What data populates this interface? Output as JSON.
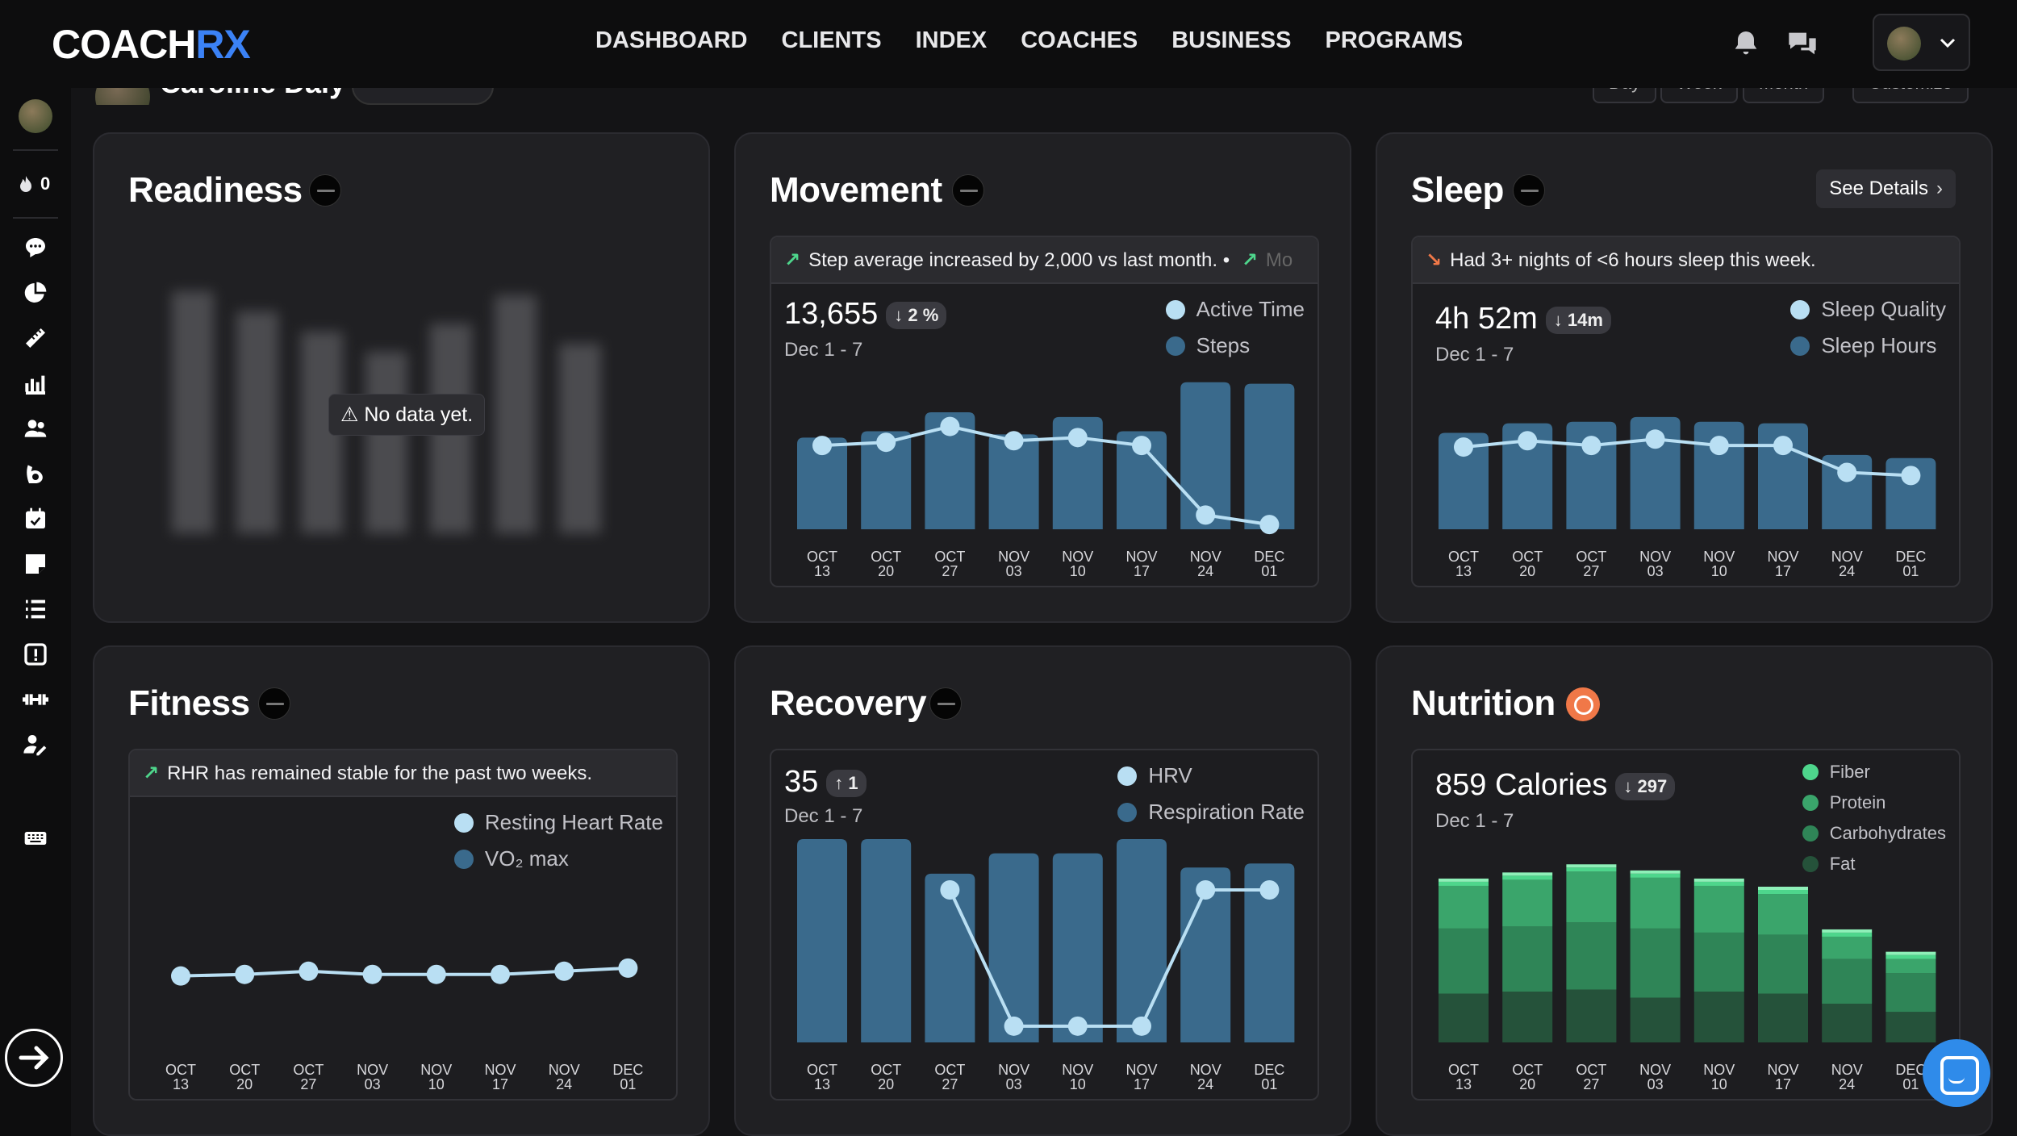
{
  "app": {
    "logo_main": "COACH",
    "logo_accent": "RX"
  },
  "nav": {
    "items": [
      "DASHBOARD",
      "CLIENTS",
      "INDEX",
      "COACHES",
      "BUSINESS",
      "PROGRAMS"
    ]
  },
  "topbar": {
    "icons": [
      "bell-icon",
      "chat-bubbles-icon",
      "chevron-down-icon"
    ]
  },
  "sidebar": {
    "streak_count": "0",
    "icons": [
      "message-icon",
      "pie-chart-icon",
      "ruler-icon",
      "bar-chart-icon",
      "users-icon",
      "biceps-icon",
      "calendar-icon",
      "note-icon",
      "list-icon",
      "alert-icon",
      "dumbbell-icon",
      "user-edit-icon",
      "keyboard-icon",
      "arrow-right-icon"
    ]
  },
  "header": {
    "client_name": "Caroline Daly",
    "range_buttons": [
      "Day",
      "Week",
      "Month"
    ],
    "customize_label": "Customize"
  },
  "colors": {
    "bar_blue": "#3a6a8c",
    "line_blue": "#b9dff3",
    "fiber": "#4ed68c",
    "protein": "#3aa56b",
    "carbs": "#2f8557",
    "fat": "#25523a",
    "accent_blue": "#3b82f6",
    "nutrition_orange": "#f07848"
  },
  "readiness": {
    "title": "Readiness",
    "no_data": "No data yet."
  },
  "movement": {
    "title": "Movement",
    "insight": "Step average increased by 2,000 vs last month. • ",
    "insight_trailing": "Mo",
    "value": "13,655",
    "delta": "2 %",
    "period": "Dec 1 - 7",
    "legend": [
      "Active Time",
      "Steps"
    ]
  },
  "sleep": {
    "title": "Sleep",
    "see_details": "See Details",
    "insight": "Had 3+ nights of <6 hours sleep this week.",
    "value": "4h 52m",
    "delta": "14m",
    "period": "Dec 1 - 7",
    "legend": [
      "Sleep Quality",
      "Sleep Hours"
    ]
  },
  "fitness": {
    "title": "Fitness",
    "insight": "RHR has remained stable for the past two weeks.",
    "legend": [
      "Resting Heart Rate",
      "VO₂ max"
    ]
  },
  "recovery": {
    "title": "Recovery",
    "value": "35",
    "delta": "1",
    "period": "Dec 1 - 7",
    "legend": [
      "HRV",
      "Respiration Rate"
    ]
  },
  "nutrition": {
    "title": "Nutrition",
    "value": "859 Calories",
    "delta": "297",
    "period": "Dec 1 - 7",
    "legend": [
      "Fiber",
      "Protein",
      "Carbohydrates",
      "Fat"
    ]
  },
  "chart_data": [
    {
      "id": "movement",
      "type": "bar",
      "categories": [
        "OCT 13",
        "OCT 20",
        "OCT 27",
        "NOV 03",
        "NOV 10",
        "NOV 17",
        "NOV 24",
        "DEC 01"
      ],
      "series": [
        {
          "name": "Steps",
          "kind": "bar",
          "values": [
            0.58,
            0.62,
            0.74,
            0.6,
            0.71,
            0.62,
            0.93,
            0.92
          ]
        },
        {
          "name": "Active Time",
          "kind": "line",
          "values": [
            0.53,
            0.55,
            0.65,
            0.56,
            0.58,
            0.53,
            0.09,
            0.03
          ]
        }
      ]
    },
    {
      "id": "sleep",
      "type": "bar",
      "categories": [
        "OCT 13",
        "OCT 20",
        "OCT 27",
        "NOV 03",
        "NOV 10",
        "NOV 17",
        "NOV 24",
        "DEC 01"
      ],
      "series": [
        {
          "name": "Sleep Hours",
          "kind": "bar",
          "values": [
            0.61,
            0.67,
            0.68,
            0.71,
            0.68,
            0.67,
            0.47,
            0.45
          ]
        },
        {
          "name": "Sleep Quality",
          "kind": "line",
          "values": [
            0.52,
            0.56,
            0.53,
            0.57,
            0.53,
            0.53,
            0.36,
            0.34
          ]
        }
      ]
    },
    {
      "id": "fitness",
      "type": "line",
      "categories": [
        "OCT 13",
        "OCT 20",
        "OCT 27",
        "NOV 03",
        "NOV 10",
        "NOV 17",
        "NOV 24",
        "DEC 01"
      ],
      "series": [
        {
          "name": "Resting Heart Rate",
          "kind": "line",
          "values": [
            0.42,
            0.43,
            0.45,
            0.43,
            0.43,
            0.43,
            0.45,
            0.47
          ]
        }
      ]
    },
    {
      "id": "recovery",
      "type": "bar",
      "categories": [
        "OCT 13",
        "OCT 20",
        "OCT 27",
        "NOV 03",
        "NOV 10",
        "NOV 17",
        "NOV 24",
        "DEC 01"
      ],
      "series": [
        {
          "name": "Respiration Rate",
          "kind": "bar",
          "values": [
            1.0,
            1.0,
            0.83,
            0.93,
            0.93,
            1.0,
            0.86,
            0.88
          ]
        },
        {
          "name": "HRV",
          "kind": "line",
          "values": [
            null,
            null,
            0.75,
            0.08,
            0.08,
            0.08,
            0.75,
            0.75
          ]
        }
      ]
    },
    {
      "id": "nutrition",
      "type": "bar",
      "stacked": true,
      "categories": [
        "OCT 13",
        "OCT 20",
        "OCT 27",
        "NOV 03",
        "NOV 10",
        "NOV 17",
        "NOV 24",
        "DEC 01"
      ],
      "series": [
        {
          "name": "Fat",
          "values": [
            0.24,
            0.25,
            0.26,
            0.22,
            0.25,
            0.24,
            0.19,
            0.15
          ]
        },
        {
          "name": "Carbohydrates",
          "values": [
            0.32,
            0.32,
            0.33,
            0.34,
            0.29,
            0.29,
            0.22,
            0.19
          ]
        },
        {
          "name": "Protein",
          "values": [
            0.21,
            0.23,
            0.25,
            0.25,
            0.23,
            0.2,
            0.11,
            0.07
          ]
        },
        {
          "name": "Fiber",
          "values": [
            0.02,
            0.02,
            0.02,
            0.02,
            0.02,
            0.02,
            0.02,
            0.02
          ]
        }
      ]
    }
  ]
}
